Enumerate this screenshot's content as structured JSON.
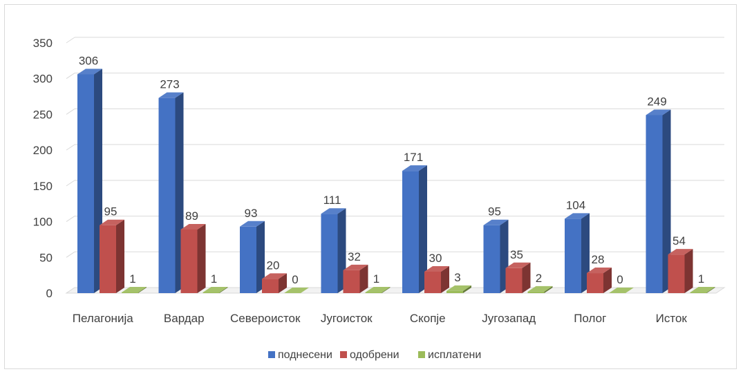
{
  "chart_data": {
    "type": "bar",
    "categories": [
      "Пелагонија",
      "Вардар",
      "Североисток",
      "Југоисток",
      "Скопје",
      "Југозапад",
      "Полог",
      "Исток"
    ],
    "series": [
      {
        "name": "поднесени",
        "color": "#4472c4",
        "values": [
          306,
          273,
          93,
          111,
          171,
          95,
          104,
          249
        ]
      },
      {
        "name": "одобрени",
        "color": "#c0504d",
        "values": [
          95,
          89,
          20,
          32,
          30,
          35,
          28,
          54
        ]
      },
      {
        "name": "исплатени",
        "color": "#9bbb59",
        "values": [
          1,
          1,
          0,
          1,
          3,
          2,
          0,
          1
        ]
      }
    ],
    "yticks": [
      "0",
      "50",
      "100",
      "150",
      "200",
      "250",
      "300",
      "350"
    ],
    "ylim": [
      0,
      350
    ],
    "grid": true,
    "legend_position": "bottom",
    "style": "3d-clustered-column"
  }
}
